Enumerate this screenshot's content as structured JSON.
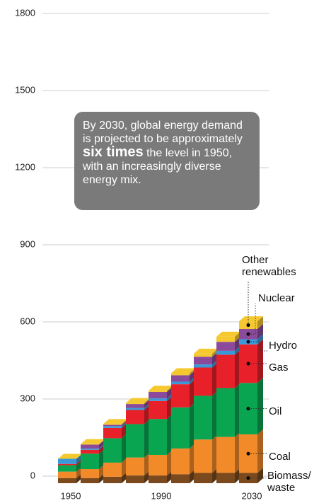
{
  "chart_data": {
    "type": "bar",
    "stacked": true,
    "annotation": [
      "By 2030, global energy demand is projected to be approximately",
      "six times",
      "the level in 1950, with an increasingly diverse energy mix."
    ],
    "categories": [
      "1950",
      null,
      null,
      null,
      "1990",
      null,
      null,
      null,
      "2030"
    ],
    "ylim": [
      0,
      1800
    ],
    "yticks": [
      0,
      300,
      600,
      900,
      1200,
      1500,
      1800
    ],
    "grid": true,
    "series": [
      {
        "name": "Biomass/ waste",
        "color": "#7a4a1e",
        "values": [
          20,
          20,
          25,
          30,
          30,
          35,
          40,
          40,
          40
        ]
      },
      {
        "name": "Coal",
        "color": "#f28a2a",
        "values": [
          25,
          35,
          55,
          70,
          80,
          100,
          130,
          140,
          150
        ]
      },
      {
        "name": "Oil",
        "color": "#0aa550",
        "values": [
          25,
          60,
          95,
          130,
          140,
          160,
          170,
          190,
          200
        ]
      },
      {
        "name": "Gas",
        "color": "#e8202a",
        "values": [
          5,
          15,
          40,
          55,
          70,
          90,
          110,
          130,
          150
        ]
      },
      {
        "name": "Hydro",
        "color": "#3a9ad9",
        "values": [
          20,
          5,
          7,
          8,
          10,
          10,
          12,
          15,
          20
        ]
      },
      {
        "name": "Nuclear",
        "color": "#8b4a9c",
        "values": [
          0,
          15,
          5,
          15,
          25,
          25,
          30,
          35,
          40
        ]
      },
      {
        "name": "Other renewables",
        "color": "#f5c830",
        "values": [
          0,
          2,
          3,
          4,
          5,
          8,
          12,
          20,
          30
        ]
      }
    ]
  }
}
